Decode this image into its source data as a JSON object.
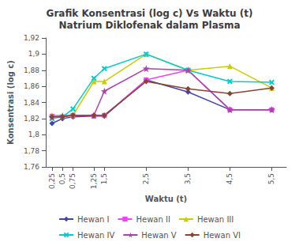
{
  "chart_data": {
    "type": "line",
    "title": "Grafik Konsentrasi (log c) Vs Waktu (t)\nNatrium Diklofenak dalam Plasma",
    "x_label": "Waktu (t)",
    "y_label": "Konsentrasi (log c)",
    "x": [
      0.25,
      0.5,
      0.75,
      1.25,
      1.5,
      2.5,
      3.5,
      4.5,
      5.5
    ],
    "xlim": [
      0.1,
      5.85
    ],
    "xticks": [
      {
        "value": 0.25,
        "label": "0,25"
      },
      {
        "value": 0.5,
        "label": "0,5"
      },
      {
        "value": 0.75,
        "label": "0,75"
      },
      {
        "value": 1.25,
        "label": "1,25"
      },
      {
        "value": 1.5,
        "label": "1,5"
      },
      {
        "value": 2.5,
        "label": "2,5"
      },
      {
        "value": 3.5,
        "label": "3,5"
      },
      {
        "value": 4.5,
        "label": "4,5"
      },
      {
        "value": 5.5,
        "label": "5,5"
      }
    ],
    "ylim": [
      1.76,
      1.92
    ],
    "yticks": [
      {
        "value": 1.76,
        "label": "1,76"
      },
      {
        "value": 1.78,
        "label": "1,78"
      },
      {
        "value": 1.8,
        "label": "1,8"
      },
      {
        "value": 1.82,
        "label": "1,82"
      },
      {
        "value": 1.84,
        "label": "1,84"
      },
      {
        "value": 1.86,
        "label": "1,86"
      },
      {
        "value": 1.88,
        "label": "1,88"
      },
      {
        "value": 1.9,
        "label": "1,9"
      },
      {
        "value": 1.92,
        "label": "1,92"
      }
    ],
    "grid": false,
    "legend": "bottom",
    "series": [
      {
        "name": "Hewan I",
        "color": "#4444aa",
        "marker": "diamond",
        "values": [
          1.814,
          1.82,
          1.822,
          1.823,
          1.823,
          1.868,
          1.853,
          1.831,
          1.831
        ]
      },
      {
        "name": "Hewan II",
        "color": "#ee44ee",
        "marker": "square",
        "values": [
          1.823,
          1.822,
          1.824,
          1.823,
          1.824,
          1.868,
          1.88,
          1.831,
          1.831
        ]
      },
      {
        "name": "Hewan III",
        "color": "#cccc00",
        "marker": "triangle",
        "values": [
          1.824,
          1.824,
          1.824,
          1.866,
          1.866,
          1.9,
          1.88,
          1.885,
          1.858
        ]
      },
      {
        "name": "Hewan IV",
        "color": "#00cccc",
        "marker": "x",
        "values": [
          1.82,
          1.822,
          1.832,
          1.87,
          1.882,
          1.9,
          1.88,
          1.866,
          1.865
        ]
      },
      {
        "name": "Hewan V",
        "color": "#aa44aa",
        "marker": "star",
        "values": [
          1.822,
          1.823,
          1.824,
          1.824,
          1.854,
          1.882,
          1.88,
          1.831,
          1.831
        ]
      },
      {
        "name": "Hewan VI",
        "color": "#884433",
        "marker": "diamond",
        "values": [
          1.822,
          1.822,
          1.824,
          1.824,
          1.824,
          1.866,
          1.857,
          1.851,
          1.858
        ]
      }
    ]
  }
}
